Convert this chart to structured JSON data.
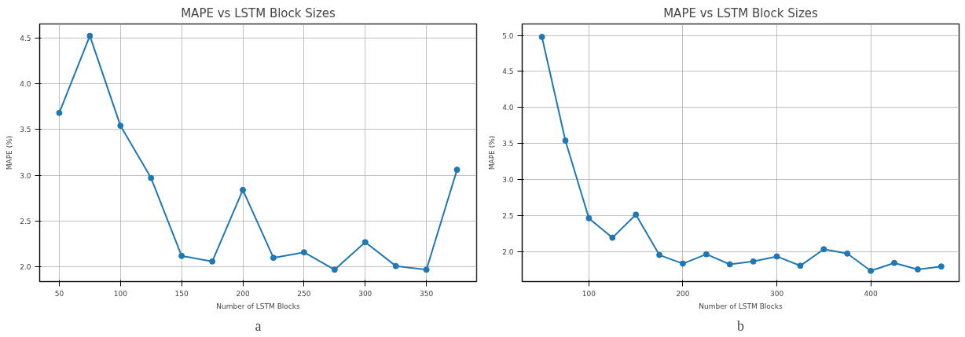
{
  "chart_data": [
    {
      "type": "line",
      "title": "MAPE vs LSTM Block Sizes",
      "xlabel": "Number of LSTM Blocks",
      "ylabel": "MAPE (%)",
      "annotations": [
        "a"
      ],
      "x": [
        50,
        75,
        100,
        125,
        150,
        175,
        200,
        225,
        250,
        275,
        300,
        325,
        350,
        375
      ],
      "series": [
        {
          "color": "#1f77b4",
          "values": [
            3.68,
            4.52,
            3.54,
            2.97,
            2.12,
            2.06,
            2.84,
            2.1,
            2.16,
            1.97,
            2.27,
            2.01,
            1.97,
            3.06
          ]
        }
      ],
      "xlim": [
        34,
        391
      ],
      "ylim": [
        1.84,
        4.65
      ],
      "xticks": [
        50,
        100,
        150,
        200,
        250,
        300,
        350
      ],
      "yticks": [
        {
          "value": 2,
          "label": "2.0"
        },
        2.5,
        {
          "value": 3,
          "label": "3.0"
        },
        3.5,
        {
          "value": 4,
          "label": "4.0"
        },
        4.5
      ],
      "grid": true,
      "marker": "circle",
      "line_style": "solid"
    },
    {
      "type": "line",
      "title": "MAPE vs LSTM Block Sizes",
      "xlabel": "Number of LSTM Blocks",
      "ylabel": "MAPE (%)",
      "annotations": [
        "b"
      ],
      "x": [
        50,
        75,
        100,
        125,
        150,
        175,
        200,
        225,
        250,
        275,
        300,
        325,
        350,
        375,
        400,
        425,
        450,
        475
      ],
      "series": [
        {
          "color": "#1f77b4",
          "values": [
            4.98,
            3.54,
            2.46,
            2.19,
            2.51,
            1.95,
            1.83,
            1.96,
            1.82,
            1.86,
            1.93,
            1.8,
            2.03,
            1.97,
            1.73,
            1.84,
            1.75,
            1.79
          ]
        }
      ],
      "xlim": [
        29,
        494
      ],
      "ylim": [
        1.58,
        5.16
      ],
      "xticks": [
        100,
        200,
        300,
        400
      ],
      "yticks": [
        {
          "value": 2,
          "label": "2.0"
        },
        2.5,
        {
          "value": 3,
          "label": "3.0"
        },
        3.5,
        {
          "value": 4,
          "label": "4.0"
        },
        4.5,
        {
          "value": 5,
          "label": "5.0"
        }
      ],
      "grid": true,
      "marker": "circle",
      "line_style": "solid"
    }
  ]
}
